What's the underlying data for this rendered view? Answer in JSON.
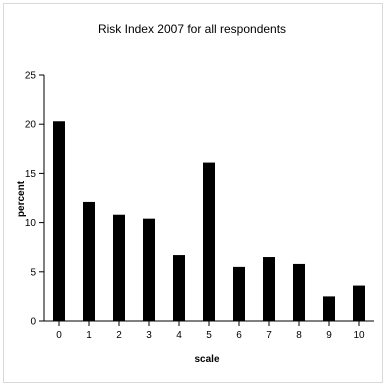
{
  "chart_data": {
    "type": "bar",
    "title": "Risk Index 2007 for all respondents",
    "xlabel": "scale",
    "ylabel": "percent",
    "categories": [
      "0",
      "1",
      "2",
      "3",
      "4",
      "5",
      "6",
      "7",
      "8",
      "9",
      "10"
    ],
    "values": [
      20.3,
      12.1,
      10.8,
      10.4,
      6.7,
      16.1,
      5.5,
      6.5,
      5.8,
      2.5,
      3.6
    ],
    "ylim": [
      0,
      25
    ],
    "yticks": [
      "0",
      "5",
      "10",
      "15",
      "20",
      "25"
    ],
    "grid": false,
    "legend": "none",
    "bar_color": "#000000"
  }
}
